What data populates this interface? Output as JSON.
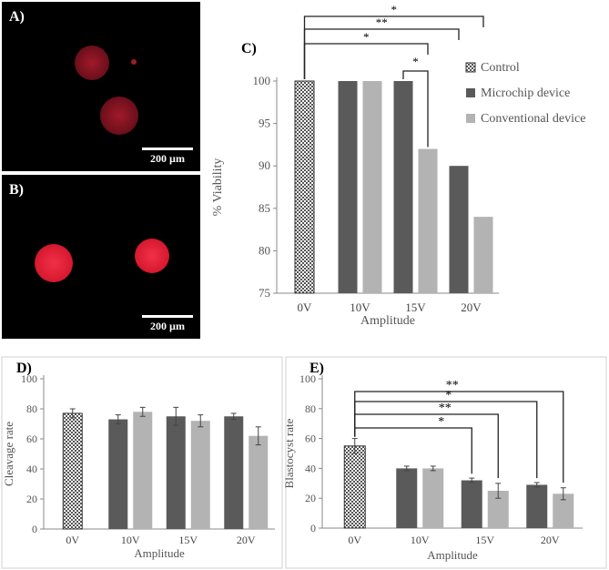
{
  "panels": {
    "A": {
      "label": "A)",
      "scale": "200 µm"
    },
    "B": {
      "label": "B)",
      "scale": "200 µm"
    }
  },
  "colors": {
    "control": "#ffffff",
    "microchip": "#5a5a5a",
    "conventional": "#b3b3b3",
    "cell_red_dim": "#8c1220",
    "cell_red_bright": "#e8203a"
  },
  "chart_data": [
    {
      "id": "C",
      "panel_label": "C)",
      "type": "bar",
      "categories": [
        "0V",
        "10V",
        "15V",
        "20V"
      ],
      "series": [
        {
          "name": "Control",
          "values": [
            100,
            null,
            null,
            null
          ]
        },
        {
          "name": "Microchip device",
          "values": [
            null,
            100,
            100,
            90
          ]
        },
        {
          "name": "Conventional device",
          "values": [
            null,
            100,
            92,
            84
          ]
        }
      ],
      "xlabel": "Amplitude",
      "ylabel": "% Viability",
      "ylim": [
        75,
        100
      ],
      "yticks": [
        75,
        80,
        85,
        90,
        95,
        100
      ],
      "legend": "right",
      "significance": [
        {
          "from": "15V Microchip device",
          "to": "15V Conventional device",
          "label": "*"
        },
        {
          "from": "0V Control",
          "to": "15V Conventional device",
          "label": "*"
        },
        {
          "from": "0V Control",
          "to": "20V Microchip device",
          "label": "**"
        },
        {
          "from": "0V Control",
          "to": "20V Conventional device",
          "label": "*"
        }
      ]
    },
    {
      "id": "D",
      "panel_label": "D)",
      "type": "bar",
      "categories": [
        "0V",
        "10V",
        "15V",
        "20V"
      ],
      "series": [
        {
          "name": "Control",
          "values": [
            77,
            null,
            null,
            null
          ],
          "errors": [
            3,
            null,
            null,
            null
          ]
        },
        {
          "name": "Microchip device",
          "values": [
            null,
            73,
            75,
            75
          ],
          "errors": [
            null,
            3,
            6,
            2
          ]
        },
        {
          "name": "Conventional device",
          "values": [
            null,
            78,
            72,
            62
          ],
          "errors": [
            null,
            3,
            4,
            6
          ]
        }
      ],
      "xlabel": "Amplitude",
      "ylabel": "Cleavage rate",
      "ylim": [
        0,
        100
      ],
      "yticks": [
        0,
        20,
        40,
        60,
        80,
        100
      ]
    },
    {
      "id": "E",
      "panel_label": "E)",
      "type": "bar",
      "categories": [
        "0V",
        "10V",
        "15V",
        "20V"
      ],
      "series": [
        {
          "name": "Control",
          "values": [
            55,
            null,
            null,
            null
          ],
          "errors": [
            5,
            null,
            null,
            null
          ]
        },
        {
          "name": "Microchip device",
          "values": [
            null,
            40,
            32,
            29
          ],
          "errors": [
            null,
            1.5,
            1.5,
            1.5
          ]
        },
        {
          "name": "Conventional device",
          "values": [
            null,
            40,
            25,
            23
          ],
          "errors": [
            null,
            1.5,
            5,
            4
          ]
        }
      ],
      "xlabel": "Amplitude",
      "ylabel": "Blastocyst rate",
      "ylim": [
        0,
        100
      ],
      "yticks": [
        0,
        20,
        40,
        60,
        80,
        100
      ],
      "significance": [
        {
          "from": "0V Control",
          "to": "15V Microchip device",
          "label": "*"
        },
        {
          "from": "0V Control",
          "to": "15V Conventional device",
          "label": "**"
        },
        {
          "from": "0V Control",
          "to": "20V Microchip device",
          "label": "*"
        },
        {
          "from": "0V Control",
          "to": "20V Conventional device",
          "label": "**"
        }
      ]
    }
  ]
}
